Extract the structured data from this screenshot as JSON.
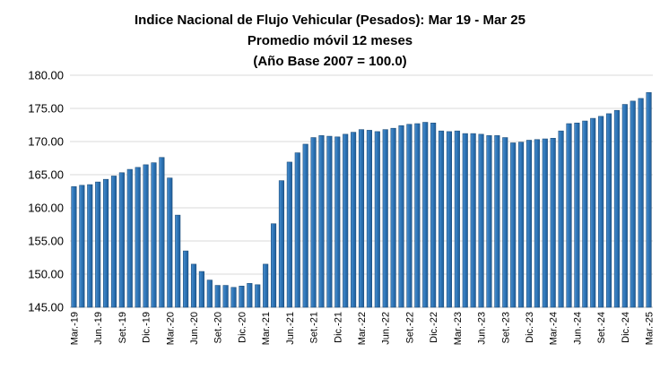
{
  "chart_data": {
    "type": "bar",
    "title": "Indice Nacional de Flujo Vehicular (Pesados): Mar 19 - Mar 25",
    "subtitle": "Promedio móvil 12 meses",
    "subtitle2": "(Año Base 2007 = 100.0)",
    "xlabel": "",
    "ylabel": "",
    "ylim": [
      145,
      180
    ],
    "yticks": [
      "145.00",
      "150.00",
      "155.00",
      "160.00",
      "165.00",
      "170.00",
      "175.00",
      "180.00"
    ],
    "grid": true,
    "legend": "none",
    "bar_color": "#2e75b6",
    "bar_edge_color": "#1f4e79",
    "x_tick_labels": [
      {
        "index": 0,
        "label": "Mar.-19"
      },
      {
        "index": 3,
        "label": "Jun.-19"
      },
      {
        "index": 6,
        "label": "Set.-19"
      },
      {
        "index": 9,
        "label": "Dic.-19"
      },
      {
        "index": 12,
        "label": "Mar.-20"
      },
      {
        "index": 15,
        "label": "Jun.-20"
      },
      {
        "index": 18,
        "label": "Set.-20"
      },
      {
        "index": 21,
        "label": "Dic.-20"
      },
      {
        "index": 24,
        "label": "Mar.-21"
      },
      {
        "index": 27,
        "label": "Jun.-21"
      },
      {
        "index": 30,
        "label": "Set.-21"
      },
      {
        "index": 33,
        "label": "Dic.-21"
      },
      {
        "index": 36,
        "label": "Mar.-22"
      },
      {
        "index": 39,
        "label": "Jun.-22"
      },
      {
        "index": 42,
        "label": "Set.-22"
      },
      {
        "index": 45,
        "label": "Dic.-22"
      },
      {
        "index": 48,
        "label": "Mar.-23"
      },
      {
        "index": 51,
        "label": "Jun.-23"
      },
      {
        "index": 54,
        "label": "Set.-23"
      },
      {
        "index": 57,
        "label": "Dic.-23"
      },
      {
        "index": 60,
        "label": "Mar.-24"
      },
      {
        "index": 63,
        "label": "Jun.-24"
      },
      {
        "index": 66,
        "label": "Set.-24"
      },
      {
        "index": 69,
        "label": "Dic.-24"
      },
      {
        "index": 72,
        "label": "Mar.-25"
      }
    ],
    "values": [
      163.2,
      163.4,
      163.5,
      163.9,
      164.3,
      164.8,
      165.3,
      165.8,
      166.1,
      166.5,
      166.8,
      167.6,
      164.5,
      158.9,
      153.5,
      151.5,
      150.4,
      149.1,
      148.3,
      148.3,
      148.0,
      148.2,
      148.6,
      148.4,
      151.5,
      157.6,
      164.1,
      166.9,
      168.3,
      169.6,
      170.6,
      170.9,
      170.8,
      170.7,
      171.1,
      171.4,
      171.8,
      171.7,
      171.5,
      171.8,
      172.0,
      172.4,
      172.6,
      172.7,
      172.9,
      172.8,
      171.6,
      171.5,
      171.6,
      171.2,
      171.2,
      171.1,
      170.9,
      170.9,
      170.6,
      169.8,
      169.9,
      170.2,
      170.3,
      170.4,
      170.5,
      171.6,
      172.7,
      172.8,
      173.1,
      173.5,
      173.8,
      174.2,
      174.7,
      175.6,
      176.1,
      176.5,
      177.4
    ]
  }
}
